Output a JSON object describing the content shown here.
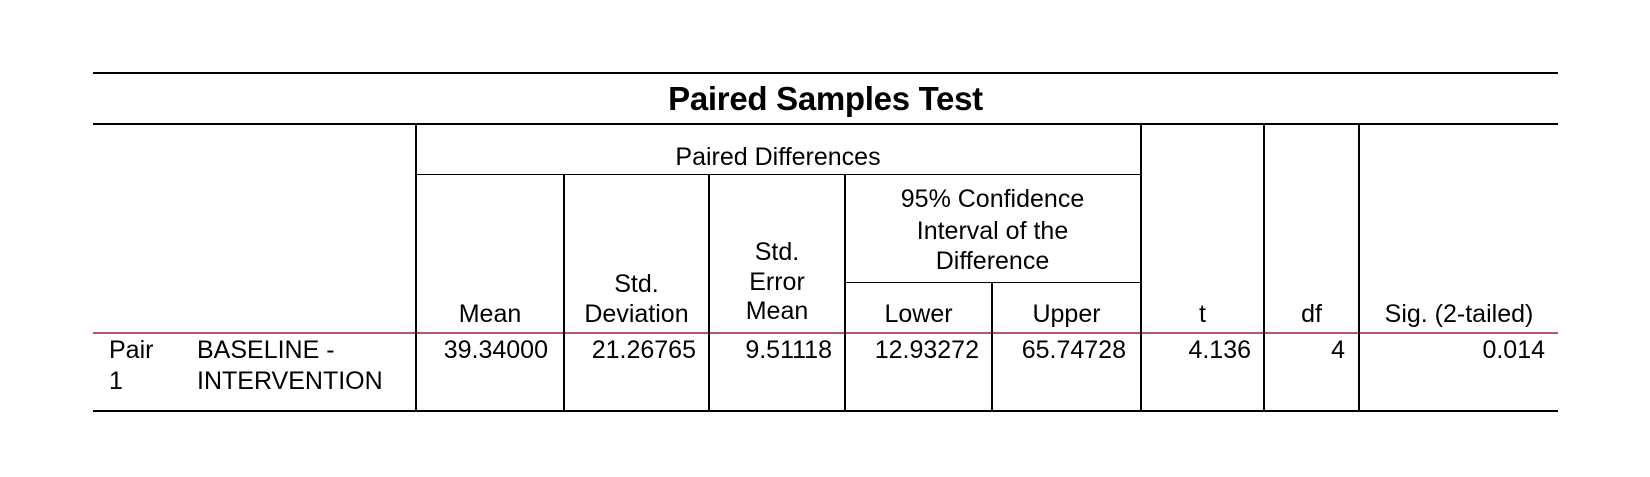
{
  "title": "Paired Samples Test",
  "group_header": "Paired Differences",
  "ci_header": "95% Confidence Interval of the Difference",
  "ci_header_lines": [
    "95% Confidence",
    "Interval of the",
    "Difference"
  ],
  "columns": {
    "mean": "Mean",
    "std_deviation": [
      "Std.",
      "Deviation"
    ],
    "std_error_mean": [
      "Std.",
      "Error",
      "Mean"
    ],
    "lower": "Lower",
    "upper": "Upper",
    "t": "t",
    "df": "df",
    "sig": "Sig. (2-tailed)"
  },
  "rows": [
    {
      "pair_label": [
        "Pair",
        "1"
      ],
      "variables": [
        "BASELINE -",
        "INTERVENTION"
      ],
      "mean": "39.34000",
      "std_deviation": "21.26765",
      "std_error_mean": "9.51118",
      "lower": "12.93272",
      "upper": "65.74728",
      "t": "4.136",
      "df": "4",
      "sig": "0.014"
    }
  ]
}
